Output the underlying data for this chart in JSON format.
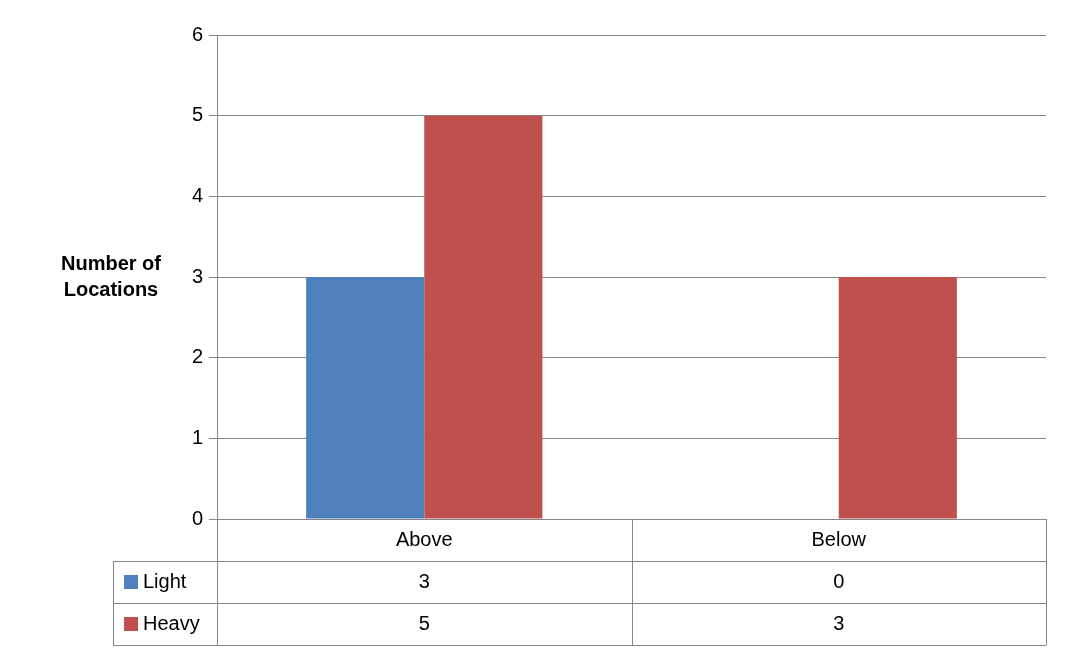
{
  "chart_data": {
    "type": "bar",
    "ylabel": "Number of\nLocations",
    "categories": [
      "Above",
      "Below"
    ],
    "series": [
      {
        "name": "Light",
        "color": "#4f81bd",
        "values": [
          3,
          0
        ]
      },
      {
        "name": "Heavy",
        "color": "#c0504d",
        "values": [
          5,
          3
        ]
      }
    ],
    "ylim": [
      0,
      6
    ],
    "yticks": [
      0,
      1,
      2,
      3,
      4,
      5,
      6
    ],
    "grid": "y",
    "legend": "bottom",
    "data_labels": true
  }
}
